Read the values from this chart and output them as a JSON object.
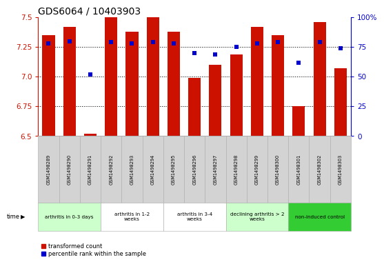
{
  "title": "GDS6064 / 10403903",
  "samples": [
    "GSM1498289",
    "GSM1498290",
    "GSM1498291",
    "GSM1498292",
    "GSM1498293",
    "GSM1498294",
    "GSM1498295",
    "GSM1498296",
    "GSM1498297",
    "GSM1498298",
    "GSM1498299",
    "GSM1498300",
    "GSM1498301",
    "GSM1498302",
    "GSM1498303"
  ],
  "bar_values": [
    7.35,
    7.42,
    6.52,
    7.5,
    7.38,
    7.5,
    7.38,
    6.99,
    7.1,
    7.19,
    7.42,
    7.35,
    6.75,
    7.46,
    7.07
  ],
  "percentile_values": [
    78,
    80,
    52,
    79,
    78,
    79,
    78,
    70,
    69,
    75,
    78,
    79,
    62,
    79,
    74
  ],
  "ylim_left": [
    6.5,
    7.5
  ],
  "ylim_right": [
    0,
    100
  ],
  "bar_color": "#cc1100",
  "dot_color": "#0000cc",
  "title_fontsize": 10,
  "tick_fontsize": 7.5,
  "groups": [
    {
      "label": "arthritis in 0-3 days",
      "start": 0,
      "end": 3,
      "color": "#ccffcc"
    },
    {
      "label": "arthritis in 1-2\nweeks",
      "start": 3,
      "end": 6,
      "color": "#ffffff"
    },
    {
      "label": "arthritis in 3-4\nweeks",
      "start": 6,
      "end": 9,
      "color": "#ffffff"
    },
    {
      "label": "declining arthritis > 2\nweeks",
      "start": 9,
      "end": 12,
      "color": "#ccffcc"
    },
    {
      "label": "non-induced control",
      "start": 12,
      "end": 15,
      "color": "#33cc33"
    }
  ],
  "yticks_left": [
    6.5,
    6.75,
    7.0,
    7.25,
    7.5
  ],
  "yticks_right": [
    0,
    25,
    50,
    75,
    100
  ],
  "background_color": "#ffffff",
  "bar_color_left_axis": "#cc1100",
  "right_axis_color": "#0000cc",
  "sample_box_color": "#d3d3d3",
  "sample_box_edge": "#aaaaaa",
  "group_edge": "#aaaaaa",
  "legend_labels": [
    "transformed count",
    "percentile rank within the sample"
  ]
}
